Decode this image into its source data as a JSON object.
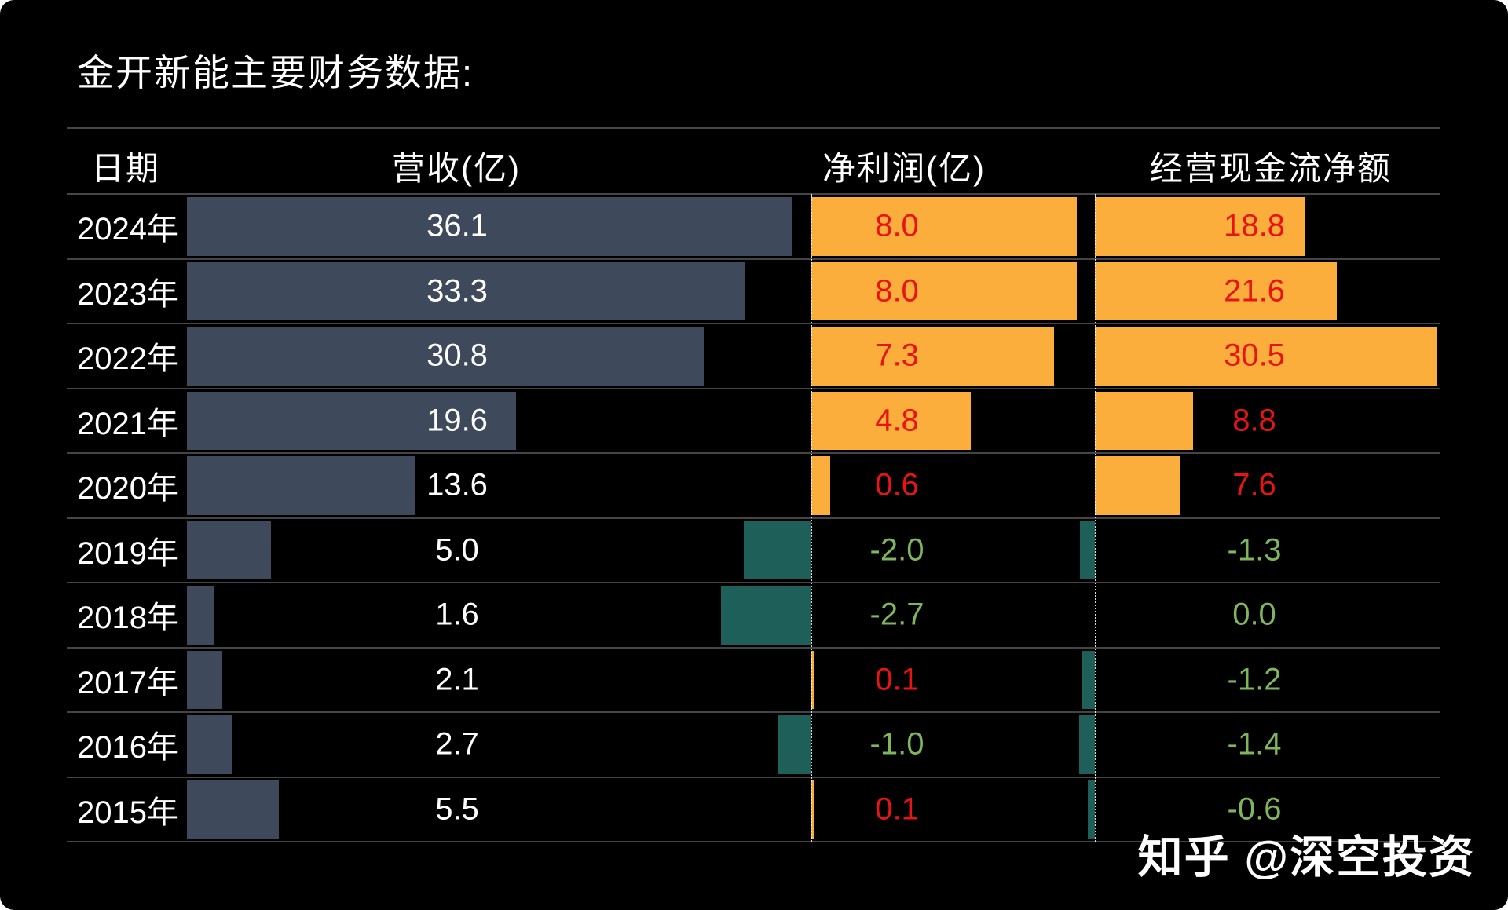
{
  "title": "金开新能主要财务数据:",
  "watermark": "知乎 @深空投资",
  "colors": {
    "background": "#000000",
    "grid_line": "#454545",
    "revenue_bar": "#3E4A5B",
    "positive_bar": "#FBAE3C",
    "negative_bar": "#1E5F5A",
    "positive_value_text": "#E81414",
    "negative_value_text": "#7FB55C",
    "revenue_value_text": "#FFFFFF",
    "header_text": "#FFFFFF",
    "baseline_dotted": "#FFFFFF"
  },
  "chart_data": {
    "type": "bar",
    "orientation": "horizontal",
    "title": "金开新能主要财务数据:",
    "columns": [
      "日期",
      "营收(亿)",
      "净利润(亿)",
      "经营现金流净额"
    ],
    "categories": [
      "2024年",
      "2023年",
      "2022年",
      "2021年",
      "2020年",
      "2019年",
      "2018年",
      "2017年",
      "2016年",
      "2015年"
    ],
    "series": [
      {
        "name": "营收(亿)",
        "values": [
          36.1,
          33.3,
          30.8,
          19.6,
          13.6,
          5.0,
          1.6,
          2.1,
          2.7,
          5.5
        ],
        "style": "single_color_bar",
        "axis_range": [
          0,
          36.1
        ]
      },
      {
        "name": "净利润(亿)",
        "values": [
          8.0,
          8.0,
          7.3,
          4.8,
          0.6,
          -2.0,
          -2.7,
          0.1,
          -1.0,
          0.1
        ],
        "style": "diverging_bar",
        "axis_range": [
          -2.7,
          8.0
        ]
      },
      {
        "name": "经营现金流净额",
        "values": [
          18.8,
          21.6,
          30.5,
          8.8,
          7.6,
          -1.3,
          0.0,
          -1.2,
          -1.4,
          -0.6
        ],
        "style": "diverging_bar",
        "axis_range": [
          -1.4,
          30.5
        ]
      }
    ],
    "legend": "none",
    "grid": "horizontal_row_separators",
    "value_labels": "one_decimal_shown_per_cell"
  }
}
